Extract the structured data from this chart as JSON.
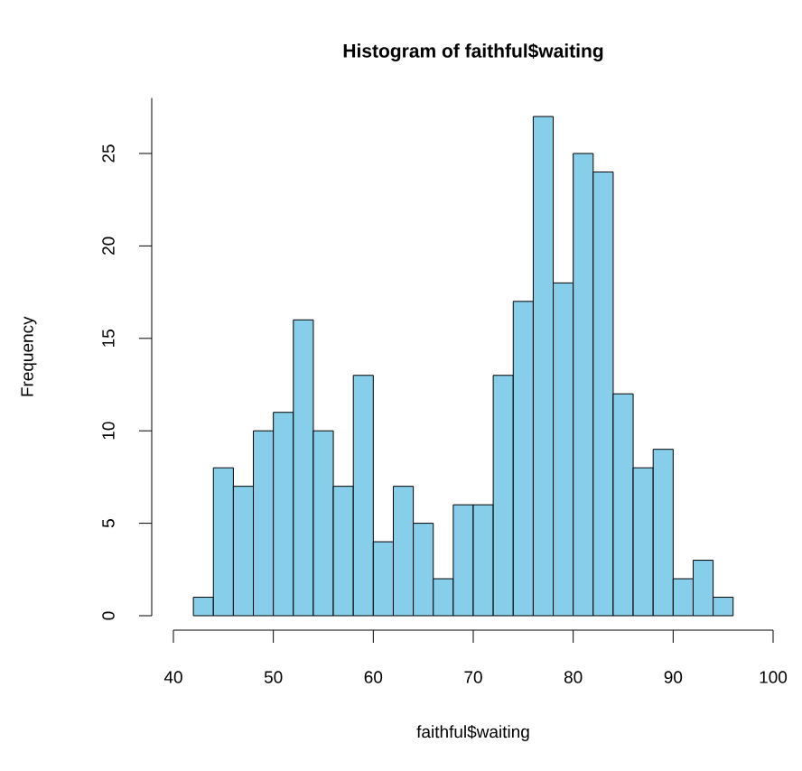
{
  "chart_data": {
    "type": "histogram",
    "title": "Histogram of faithful$waiting",
    "xlabel": "faithful$waiting",
    "ylabel": "Frequency",
    "bins": [
      42,
      44,
      46,
      48,
      50,
      52,
      54,
      56,
      58,
      60,
      62,
      64,
      66,
      68,
      70,
      72,
      74,
      76,
      78,
      80,
      82,
      84,
      86,
      88,
      90,
      92,
      94,
      96
    ],
    "values": [
      1,
      8,
      7,
      10,
      11,
      16,
      10,
      7,
      13,
      4,
      7,
      5,
      2,
      6,
      6,
      13,
      17,
      27,
      18,
      25,
      24,
      12,
      8,
      9,
      2,
      3,
      1
    ],
    "color": "#87ceeb",
    "xlim": [
      40,
      100
    ],
    "ylim": [
      0,
      28
    ],
    "xticks": [
      40,
      50,
      60,
      70,
      80,
      90,
      100
    ],
    "yticks": [
      0,
      5,
      10,
      15,
      20,
      25
    ]
  }
}
